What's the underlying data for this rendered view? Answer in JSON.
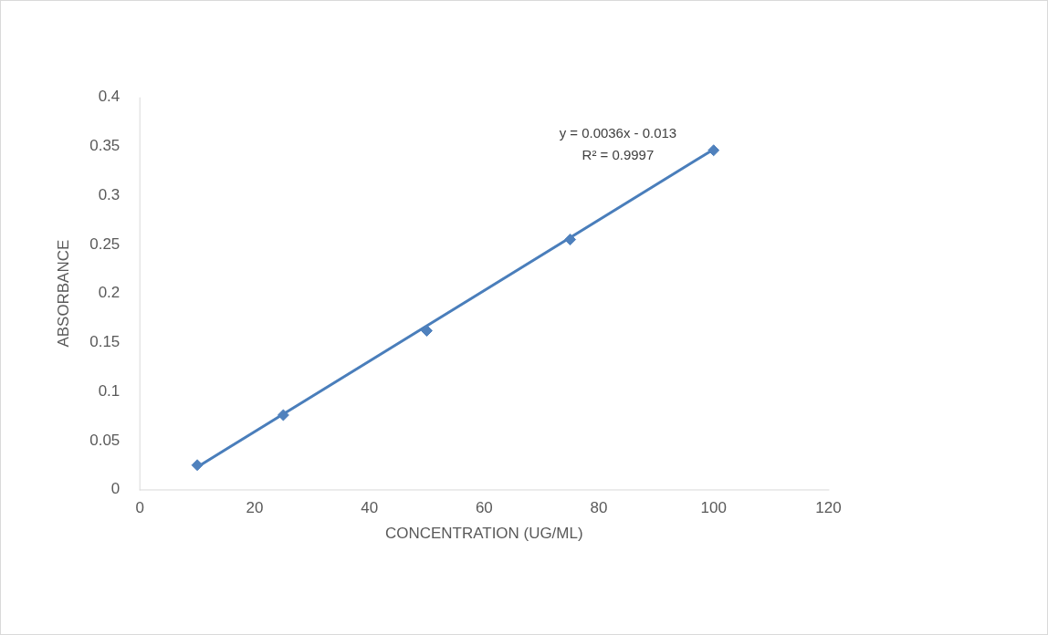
{
  "chart_data": {
    "type": "scatter",
    "xlabel": "CONCENTRATION (UG/ML)",
    "ylabel": "ABSORBANCE",
    "xlim": [
      0,
      120
    ],
    "xticks": [
      0,
      20,
      40,
      60,
      80,
      100,
      120
    ],
    "ylim": [
      0,
      0.4
    ],
    "yticks": [
      0,
      0.05,
      0.1,
      0.15,
      0.2,
      0.25,
      0.3,
      0.35,
      0.4
    ],
    "grid": false,
    "legend": false,
    "annotations": [
      "y = 0.0036x - 0.013",
      "R² = 0.9997"
    ],
    "series": [
      {
        "marker": "diamond",
        "color": "#4f81bd",
        "x": [
          10,
          25,
          50,
          75,
          100
        ],
        "values": [
          0.025,
          0.076,
          0.162,
          0.255,
          0.346
        ]
      },
      {
        "type": "line",
        "color": "#4a7ebb",
        "x": [
          10,
          100
        ],
        "values": [
          0.023,
          0.347
        ]
      }
    ]
  }
}
